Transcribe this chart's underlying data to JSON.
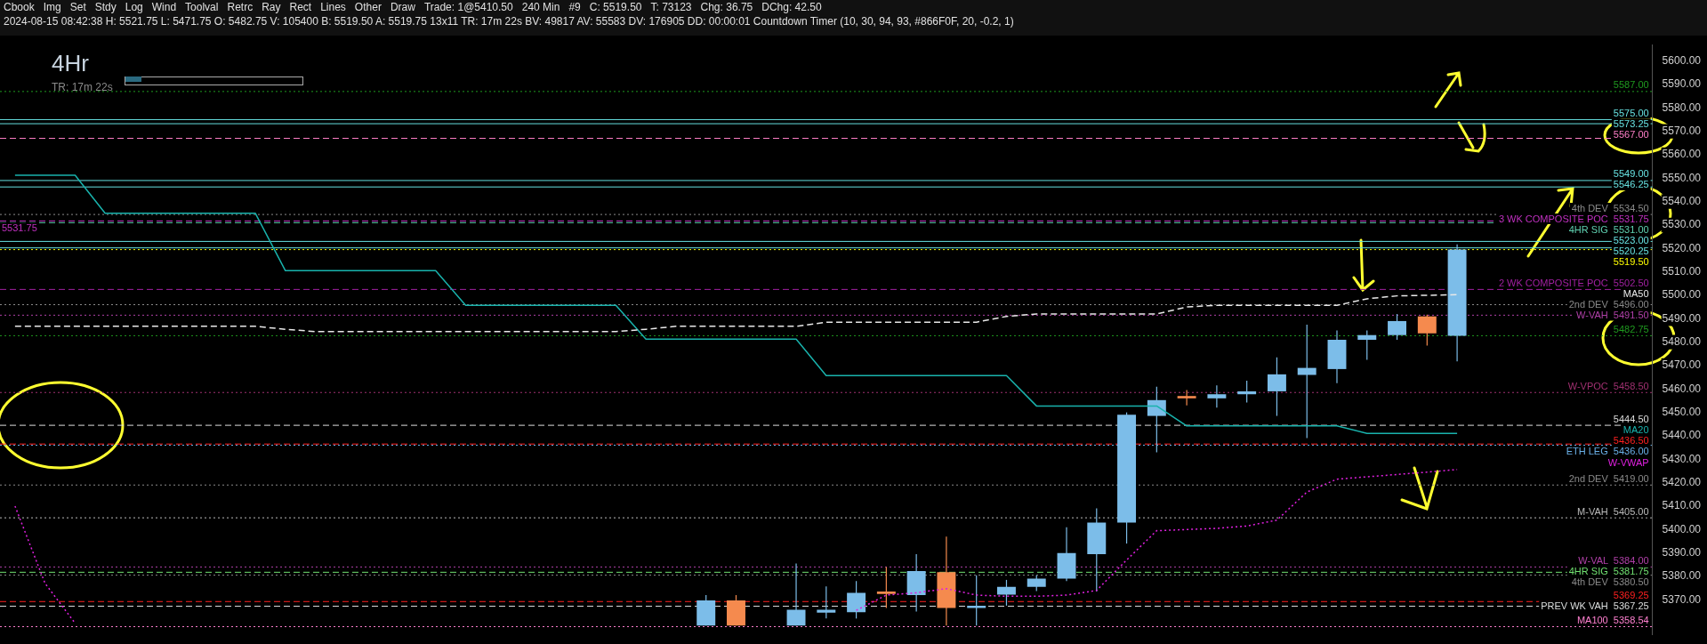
{
  "chart_data": {
    "type": "candlestick",
    "title": "4Hr",
    "subtitle": "TR: 17m 22s",
    "annotations": [
      "Cbook",
      "Img",
      "Set",
      "Stdy",
      "Log",
      "Wind",
      "Toolval",
      "Retrc",
      "Ray",
      "Rect",
      "Lines",
      "Other",
      "Draw",
      "Trade: 1@5410.50",
      "240 Min",
      "#9",
      "C: 5519.50",
      "T: 73123",
      "Chg: 36.75",
      "DChg: 42.50",
      "2024-08-15 08:42:38 H: 5521.75 L: 5471.75 O: 5482.75 V: 105400 B: 5519.50 A: 5519.75 13x11 TR: 17m 22s BV: 49817 AV: 55583 DV: 176905 DD: 00:00:01 Countdown Timer (10, 30, 94, 93, #866F0F, 20, -0.2, 1)",
      {
        "text": "5531.75",
        "y": 5531.75
      }
    ],
    "categories": [
      null,
      null,
      null,
      null,
      null,
      null,
      null,
      null,
      null,
      null,
      null,
      null,
      null,
      null,
      null,
      null,
      null,
      null,
      null,
      null,
      null,
      null,
      null,
      null,
      null,
      null,
      null,
      null,
      null,
      null,
      null,
      null,
      null,
      null,
      null,
      null,
      null,
      null,
      null,
      null,
      null,
      null,
      null,
      null,
      null,
      null,
      null,
      null,
      null,
      null,
      null,
      null,
      null,
      null,
      null
    ],
    "ohlc": [
      null,
      null,
      null,
      null,
      null,
      null,
      null,
      null,
      null,
      null,
      null,
      null,
      null,
      null,
      null,
      null,
      null,
      null,
      null,
      null,
      null,
      null,
      null,
      [
        5359,
        5372,
        5359,
        5369.75
      ],
      [
        5369.75,
        5372,
        5359,
        5359
      ],
      null,
      [
        5359,
        5385.5,
        5359,
        5365.75
      ],
      [
        5364.5,
        5375.75,
        5362,
        5365.75
      ],
      [
        5364.75,
        5378,
        5362,
        5373
      ],
      [
        5373.5,
        5384,
        5366.5,
        5372.5
      ],
      [
        5372,
        5389.5,
        5365,
        5382.25
      ],
      [
        5381.75,
        5397,
        5359,
        5366.5
      ],
      [
        5366.5,
        5380.5,
        5359,
        5367.5
      ],
      [
        5372.25,
        5378.5,
        5367.5,
        5375.5
      ],
      [
        5375.5,
        5380.5,
        5373.75,
        5379
      ],
      [
        5379,
        5401,
        5378,
        5390
      ],
      [
        5389.5,
        5409,
        5373.5,
        5403
      ],
      [
        5403,
        5450,
        5394,
        5449
      ],
      [
        5448.5,
        5461,
        5433,
        5455.25
      ],
      [
        5457,
        5459.5,
        5453,
        5456
      ],
      [
        5456,
        5461.5,
        5452,
        5457.75
      ],
      [
        5457.75,
        5463.5,
        5454.25,
        5459
      ],
      [
        5459,
        5473.5,
        5448.5,
        5466.25
      ],
      [
        5466,
        5487.5,
        5439,
        5469
      ],
      [
        5468.5,
        5485,
        5462.5,
        5481
      ],
      [
        5481,
        5485,
        5472.5,
        5483
      ],
      [
        5483,
        5492,
        5481,
        5489
      ],
      [
        5491,
        5491.75,
        5478.5,
        5483.75
      ],
      [
        5482.75,
        5521.75,
        5471.75,
        5519.5
      ],
      null,
      null,
      null,
      null,
      null,
      null
    ],
    "colors": [
      null,
      null,
      null,
      null,
      null,
      null,
      null,
      null,
      null,
      null,
      null,
      null,
      null,
      null,
      null,
      null,
      null,
      null,
      null,
      null,
      null,
      null,
      null,
      "#7cbde9",
      "#f58a4e",
      null,
      "#7cbde9",
      "#7cbde9",
      "#7cbde9",
      "#f58a4e",
      "#7cbde9",
      "#f58a4e",
      "#7cbde9",
      "#7cbde9",
      "#7cbde9",
      "#7cbde9",
      "#7cbde9",
      "#7cbde9",
      "#7cbde9",
      "#f58a4e",
      "#7cbde9",
      "#7cbde9",
      "#7cbde9",
      "#7cbde9",
      "#7cbde9",
      "#7cbde9",
      "#7cbde9",
      "#f58a4e",
      "#7cbde9",
      null,
      null,
      null,
      null,
      null,
      null
    ],
    "series": [
      {
        "type": "line",
        "name": "MA50",
        "color": "#e8e8e8",
        "line_style": "dashed",
        "values": [
          5486.75,
          5486.75,
          5486.75,
          5486.75,
          5486.75,
          5486.75,
          5486.75,
          5486.75,
          5486.75,
          5485.5,
          5484.5,
          5484.5,
          5484.5,
          5484.5,
          5484.5,
          5484.5,
          5484.5,
          5484.5,
          5484.5,
          5484.5,
          5484.5,
          5485.5,
          5486.75,
          5486.75,
          5486.75,
          5486.75,
          5486.75,
          5488.5,
          5488.5,
          5488.5,
          5488.5,
          5488.5,
          5488.5,
          5491,
          5492,
          5492,
          5492,
          5492,
          5492,
          5495,
          5495.75,
          5495.75,
          5495.75,
          5495.75,
          5495.75,
          5498.5,
          5499.75,
          5500,
          5500.24,
          null,
          null,
          null,
          null,
          null,
          null
        ]
      },
      {
        "type": "line",
        "name": "MA20",
        "color": "#19b3ad",
        "line_style": "solid",
        "values": [
          5551.25,
          5551.25,
          5551.25,
          5535,
          5535,
          5535,
          5535,
          5535,
          5535,
          5510.5,
          5510.5,
          5510.5,
          5510.5,
          5510.5,
          5510.5,
          5495.75,
          5495.75,
          5495.75,
          5495.75,
          5495.75,
          5495.75,
          5481.25,
          5481.25,
          5481.25,
          5481.25,
          5481.25,
          5481.25,
          5465.75,
          5465.75,
          5465.75,
          5465.75,
          5465.75,
          5465.75,
          5465.75,
          5452.75,
          5452.75,
          5452.75,
          5452.75,
          5452.75,
          5444.25,
          5444.25,
          5444.25,
          5444.25,
          5444.25,
          5444.25,
          5441.04,
          5441.04,
          5441.04,
          5441.04,
          null,
          null,
          null,
          null,
          null,
          null
        ]
      },
      {
        "type": "line",
        "name": "W-VWAP",
        "color": "#e020e0",
        "line_style": "dotted",
        "values": [
          5410,
          5377,
          5360,
          null,
          null,
          null,
          null,
          null,
          null,
          null,
          null,
          null,
          null,
          null,
          null,
          null,
          null,
          null,
          null,
          null,
          null,
          null,
          null,
          null,
          null,
          null,
          null,
          null,
          5365.5,
          5372,
          5373,
          5374.75,
          5372,
          5371.5,
          5371.5,
          5372,
          5374,
          5387,
          5399.5,
          5400,
          5400.5,
          5401.5,
          5404,
          5416,
          5421.5,
          5422.5,
          5423.5,
          5424.5,
          5425.62,
          null,
          null,
          null,
          null,
          null,
          null
        ]
      }
    ],
    "ylim": [
      5355,
      5607
    ],
    "yticks": [
      {
        "value": 5370,
        "label": "5370.00"
      },
      {
        "value": 5380,
        "label": "5380.00"
      },
      {
        "value": 5390,
        "label": "5390.00"
      },
      {
        "value": 5400,
        "label": "5400.00"
      },
      {
        "value": 5410,
        "label": "5410.00"
      },
      {
        "value": 5420,
        "label": "5420.00"
      },
      {
        "value": 5430,
        "label": "5430.00"
      },
      {
        "value": 5440,
        "label": "5440.00"
      },
      {
        "value": 5450,
        "label": "5450.00"
      },
      {
        "value": 5460,
        "label": "5460.00"
      },
      {
        "value": 5470,
        "label": "5470.00"
      },
      {
        "value": 5480,
        "label": "5480.00"
      },
      {
        "value": 5490,
        "label": "5490.00"
      },
      {
        "value": 5500,
        "label": "5500.00"
      },
      {
        "value": 5510,
        "label": "5510.00"
      },
      {
        "value": 5520,
        "label": "5520.00"
      },
      {
        "value": 5530,
        "label": "5530.00"
      },
      {
        "value": 5540,
        "label": "5540.00"
      },
      {
        "value": 5550,
        "label": "5550.00"
      },
      {
        "value": 5560,
        "label": "5560.00"
      },
      {
        "value": 5570,
        "label": "5570.00"
      },
      {
        "value": 5580,
        "label": "5580.00"
      },
      {
        "value": 5590,
        "label": "5590.00"
      },
      {
        "value": 5600,
        "label": "5600.00"
      }
    ],
    "tick_labels": "y",
    "ref_lines": [
      {
        "axis": "y",
        "value": 5587,
        "label": "5587.00",
        "color": "#1f9a1f",
        "line_style": "dotted"
      },
      {
        "axis": "y",
        "value": 5575,
        "label": "5575.00",
        "color": "#66e0e0",
        "line_style": "solid"
      },
      {
        "axis": "y",
        "value": 5573.25,
        "label": "5573.25",
        "color": "#66e0e0",
        "line_style": "solid"
      },
      {
        "axis": "y",
        "value": 5567,
        "label": "5567.00",
        "color": "#ff7fc8",
        "line_style": "dashed"
      },
      {
        "axis": "y",
        "value": 5549,
        "label": "5549.00",
        "color": "#66e0e0",
        "line_style": "solid"
      },
      {
        "axis": "y",
        "value": 5546.25,
        "label": "5546.25",
        "color": "#66e0e0",
        "line_style": "solid"
      },
      {
        "axis": "y",
        "value": 5534.5,
        "label": "4th DEV  5534.50",
        "color": "#8a8a8a",
        "line_style": "dotted"
      },
      {
        "axis": "y",
        "value": 5531.75,
        "label": "3 WK COMPOSITE POC  5531.75",
        "color": "#c030c0",
        "line_style": "dashed"
      },
      {
        "axis": "y",
        "value": 5531,
        "label": "4HR SIG  5531.00",
        "color": "#5fd0b0",
        "line_style": "dashed"
      },
      {
        "axis": "y",
        "value": 5523,
        "label": "5523.00",
        "color": "#66e0e0",
        "line_style": "solid"
      },
      {
        "axis": "y",
        "value": 5520.25,
        "label": "5520.25",
        "color": "#66e0e0",
        "line_style": "solid"
      },
      {
        "axis": "y",
        "value": 5519.5,
        "label": "5519.50",
        "color": "#ffff00",
        "line_style": "dotted"
      },
      {
        "axis": "y",
        "value": 5502.5,
        "label": "2 WK COMPOSITE POC  5502.50",
        "color": "#a020a0",
        "line_style": "dashed"
      },
      {
        "axis": "y",
        "value": 5496,
        "label": "2nd DEV  5496.00",
        "color": "#8a8a8a",
        "line_style": "dotted"
      },
      {
        "axis": "y",
        "value": 5491.5,
        "label": "W-VAH  5491.50",
        "color": "#b040a8",
        "line_style": "dotted"
      },
      {
        "axis": "y",
        "value": 5482.75,
        "label": "5482.75",
        "color": "#1f9a1f",
        "line_style": "dotted"
      },
      {
        "axis": "y",
        "value": 5458.5,
        "label": "W-VPOC  5458.50",
        "color": "#a03070",
        "line_style": "dotted"
      },
      {
        "axis": "y",
        "value": 5444.5,
        "label": "5444.50",
        "color": "#dddddd",
        "line_style": "dashed"
      },
      {
        "axis": "y",
        "value": 5436.5,
        "label": "5436.50",
        "color": "#ff2020",
        "line_style": "dashed"
      },
      {
        "axis": "y",
        "value": 5436,
        "label": "ETH LEG  5436.00",
        "color": "#6ab0e8",
        "line_style": "dotted"
      },
      {
        "axis": "y",
        "value": 5419,
        "label": "2nd DEV  5419.00",
        "color": "#8a8a8a",
        "line_style": "dotted"
      },
      {
        "axis": "y",
        "value": 5405,
        "label": "M-VAH  5405.00",
        "color": "#bbbbbb",
        "line_style": "dotted"
      },
      {
        "axis": "y",
        "value": 5384,
        "label": "W-VAL  5384.00",
        "color": "#b040a8",
        "line_style": "dotted"
      },
      {
        "axis": "y",
        "value": 5381.75,
        "label": "4HR SIG  5381.75",
        "color": "#70e070",
        "line_style": "dashed"
      },
      {
        "axis": "y",
        "value": 5380.5,
        "label": "4th DEV  5380.50",
        "color": "#8a8a8a",
        "line_style": "dotted"
      },
      {
        "axis": "y",
        "value": 5369.25,
        "label": "5369.25",
        "color": "#ff2020",
        "line_style": "dashed"
      },
      {
        "axis": "y",
        "value": 5367.25,
        "label": "PREV WK VAH  5367.25",
        "color": "#dddddd",
        "line_style": "dashed"
      },
      {
        "axis": "y",
        "value": 5358.54,
        "label": "MA100  5358.54",
        "color": "#ff80d0",
        "line_style": "dotted"
      }
    ]
  }
}
